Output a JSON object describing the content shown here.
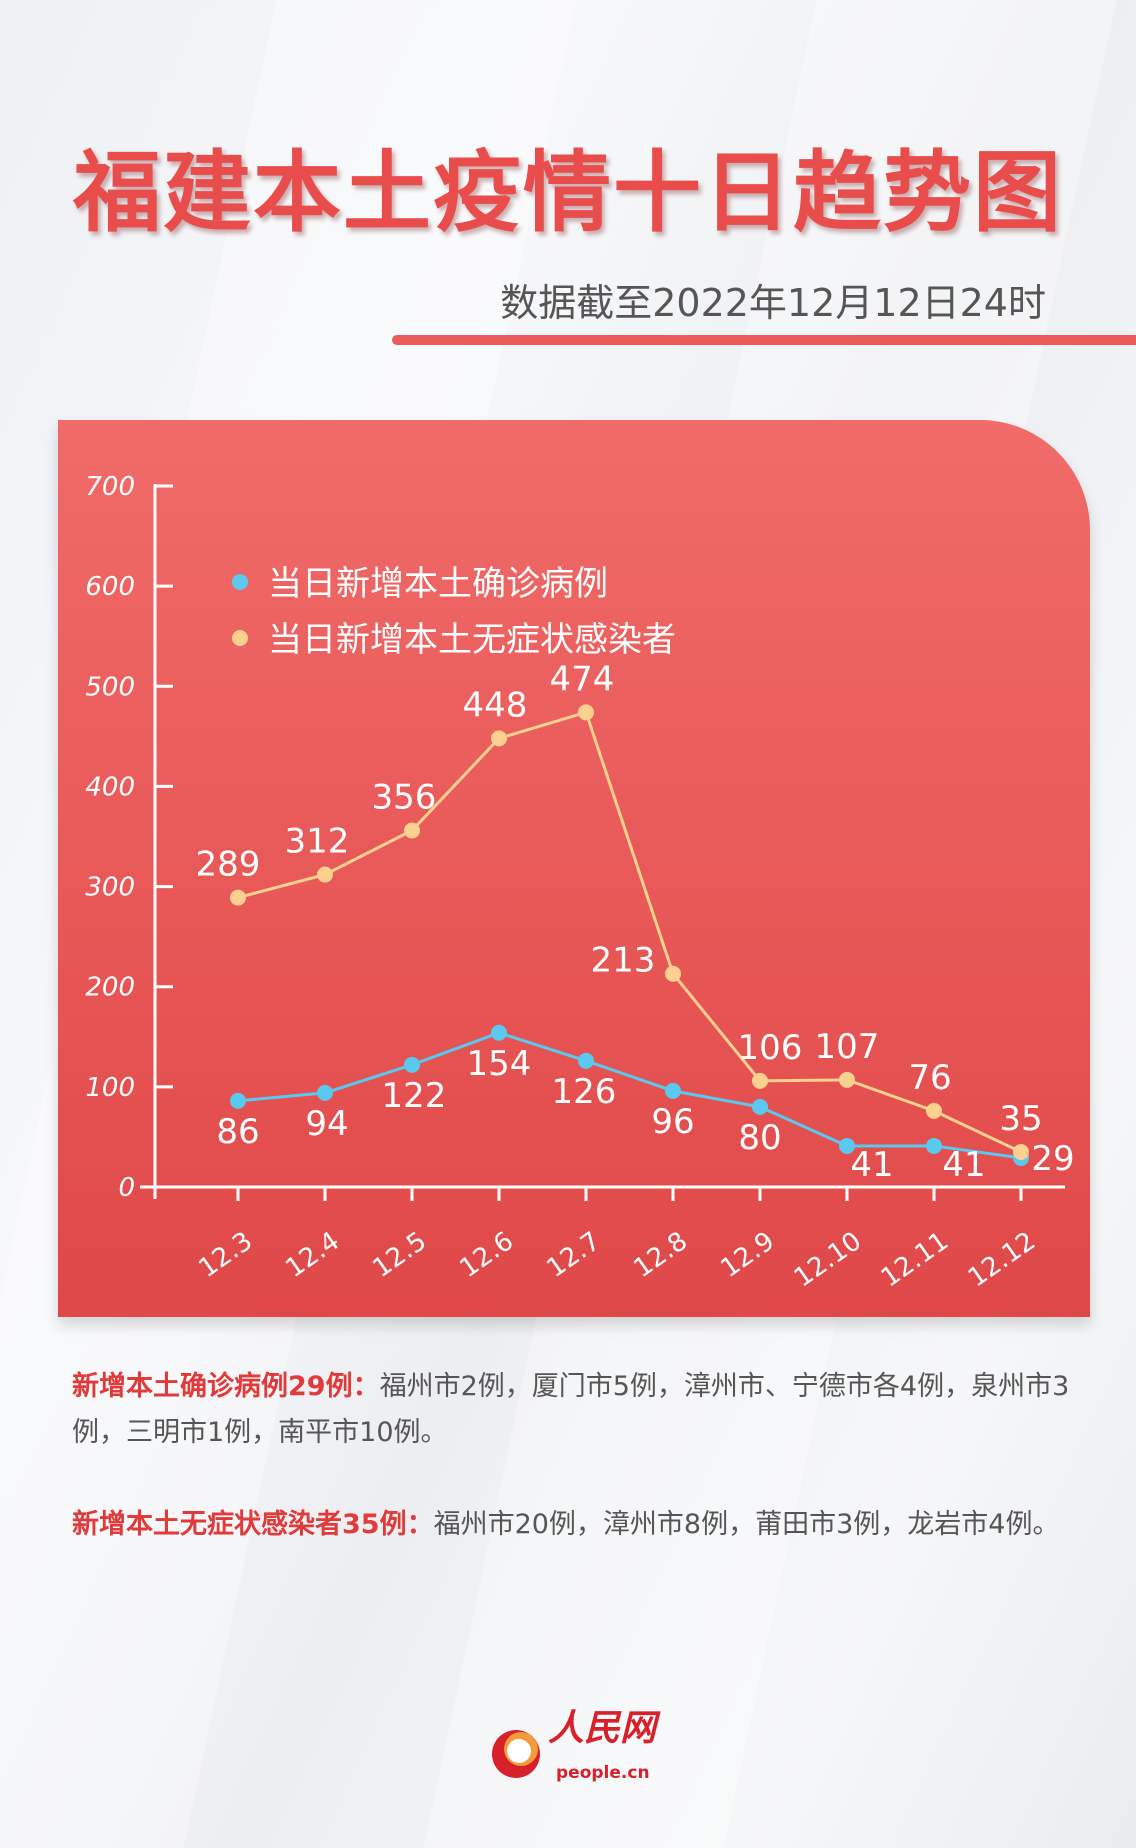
{
  "title": "福建本土疫情十日趋势图",
  "subtitle": "数据截至2022年12月12日24时",
  "chart_data": {
    "type": "line",
    "title": "福建本土疫情十日趋势图",
    "categories": [
      "12.3",
      "12.4",
      "12.5",
      "12.6",
      "12.7",
      "12.8",
      "12.9",
      "12.10",
      "12.11",
      "12.12"
    ],
    "yticks": [
      0,
      100,
      200,
      300,
      400,
      500,
      600,
      700
    ],
    "ylim": [
      0,
      700
    ],
    "legend_position": "top-left",
    "series": [
      {
        "name": "当日新增本土确诊病例",
        "color": "#5bc8ef",
        "values": [
          86,
          94,
          122,
          154,
          126,
          96,
          80,
          41,
          41,
          29
        ]
      },
      {
        "name": "当日新增本土无症状感染者",
        "color": "#fcd08f",
        "values": [
          289,
          312,
          356,
          448,
          474,
          213,
          106,
          107,
          76,
          35
        ]
      }
    ]
  },
  "notes": [
    {
      "label": "新增本土确诊病例29例：",
      "text": "福州市2例，厦门市5例，漳州市、宁德市各4例，泉州市3例，三明市1例，南平市10例。"
    },
    {
      "label": "新增本土无症状感染者35例：",
      "text": "福州市20例，漳州市8例，莆田市3例，龙岩市4例。"
    }
  ],
  "logo": {
    "name": "人民网",
    "url": "people.cn"
  }
}
